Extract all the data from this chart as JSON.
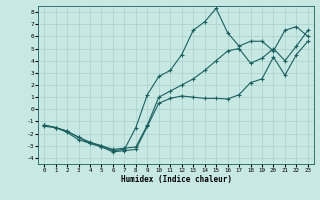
{
  "xlabel": "Humidex (Indice chaleur)",
  "bg_color": "#c8e8e4",
  "grid_color": "#aad0cc",
  "line_color": "#1a6060",
  "xlim": [
    -0.5,
    23.5
  ],
  "ylim": [
    -4.5,
    8.5
  ],
  "xticks": [
    0,
    1,
    2,
    3,
    4,
    5,
    6,
    7,
    8,
    9,
    10,
    11,
    12,
    13,
    14,
    15,
    16,
    17,
    18,
    19,
    20,
    21,
    22,
    23
  ],
  "yticks": [
    -4,
    -3,
    -2,
    -1,
    0,
    1,
    2,
    3,
    4,
    5,
    6,
    7,
    8
  ],
  "line_peak": [
    -1.3,
    -1.5,
    -1.8,
    -2.3,
    -2.8,
    -3.0,
    -3.4,
    -3.3,
    -1.5,
    1.2,
    2.7,
    3.2,
    4.5,
    6.5,
    7.2,
    8.3,
    6.3,
    5.2,
    5.6,
    5.6,
    4.8,
    6.5,
    6.8,
    6.0
  ],
  "line_low": [
    -1.4,
    -1.5,
    -1.9,
    -2.5,
    -2.8,
    -3.1,
    -3.5,
    -3.4,
    -3.3,
    -1.4,
    0.5,
    0.9,
    1.1,
    1.0,
    0.9,
    0.9,
    0.85,
    1.2,
    2.2,
    2.5,
    4.3,
    2.8,
    4.5,
    5.6
  ],
  "line_mid": [
    -1.3,
    -1.5,
    -1.8,
    -2.3,
    -2.7,
    -3.0,
    -3.3,
    -3.2,
    -3.1,
    -1.3,
    1.0,
    1.5,
    2.0,
    2.5,
    3.2,
    4.0,
    4.8,
    5.0,
    3.8,
    4.2,
    5.0,
    4.0,
    5.2,
    6.5
  ]
}
